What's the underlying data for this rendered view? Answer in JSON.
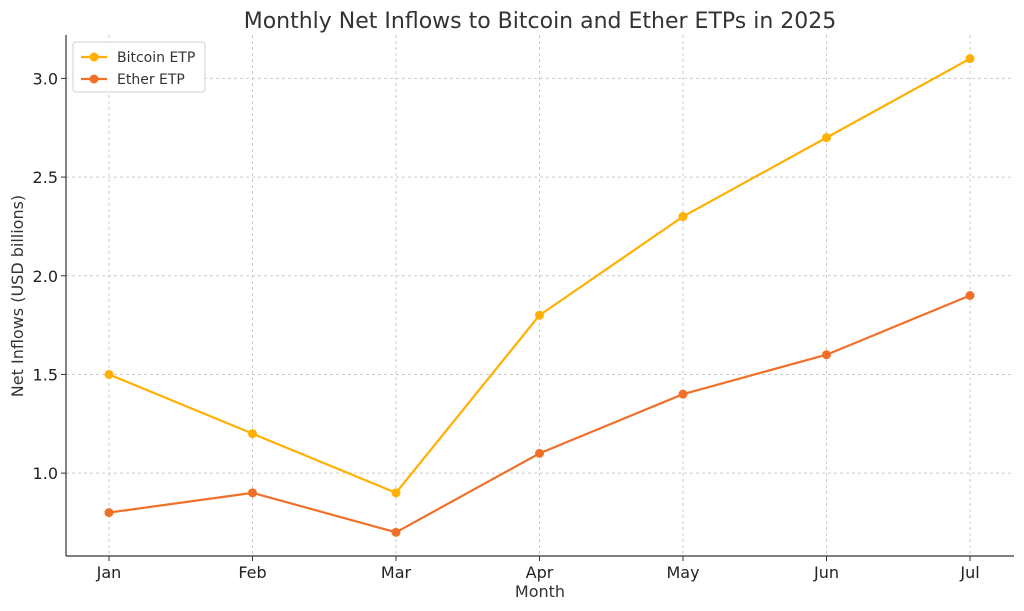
{
  "chart_data": {
    "type": "line",
    "title": "Monthly Net Inflows to Bitcoin and Ether ETPs in 2025",
    "xlabel": "Month",
    "ylabel": "Net Inflows (USD billions)",
    "categories": [
      "Jan",
      "Feb",
      "Mar",
      "Apr",
      "May",
      "Jun",
      "Jul"
    ],
    "yticks": [
      "1.0",
      "1.5",
      "2.0",
      "2.5",
      "3.0"
    ],
    "ylim": [
      0.58,
      3.22
    ],
    "grid": true,
    "legend_position": "top-left",
    "series": [
      {
        "name": "Bitcoin ETP",
        "color": "#FFB000",
        "marker": "circle",
        "values": [
          1.5,
          1.2,
          0.9,
          1.8,
          2.3,
          2.7,
          3.1
        ]
      },
      {
        "name": "Ether ETP",
        "color": "#F0702A",
        "marker": "circle",
        "values": [
          0.8,
          0.9,
          0.7,
          1.1,
          1.4,
          1.6,
          1.9
        ]
      }
    ]
  }
}
